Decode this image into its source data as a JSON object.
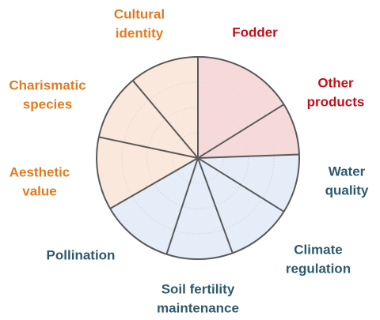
{
  "segments": [
    {
      "label": [
        "Fodder"
      ]
    },
    {
      "label": [
        "Other",
        "products"
      ]
    },
    {
      "label": [
        "Water",
        "quality"
      ]
    },
    {
      "label": [
        "Climate",
        "regulation"
      ]
    },
    {
      "label": [
        "Soil fertility",
        "maintenance"
      ]
    },
    {
      "label": [
        "Pollination"
      ]
    },
    {
      "label": [
        "Aesthetic",
        "value"
      ]
    },
    {
      "label": [
        "Charismatic",
        "species"
      ]
    },
    {
      "label": [
        "Cultural",
        "identity"
      ]
    }
  ]
}
